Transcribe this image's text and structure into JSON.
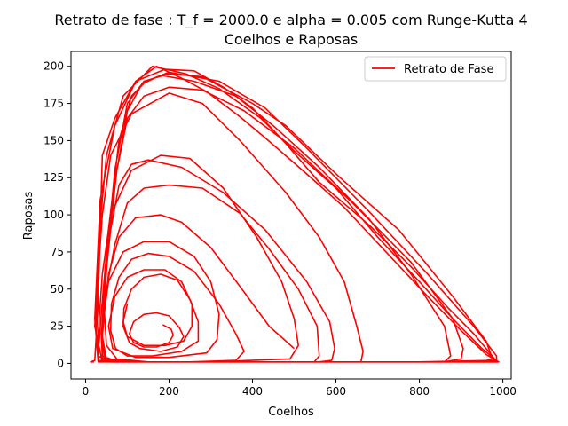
{
  "chart_data": {
    "type": "line",
    "title": "Retrato de fase : T_f = 2000.0 e alpha = 0.005 com Runge-Kutta 4",
    "subtitle": "Coelhos e Raposas",
    "xlabel": "Coelhos",
    "ylabel": "Raposas",
    "xlim": [
      -35,
      1020
    ],
    "ylim": [
      -10.5,
      210
    ],
    "xticks": [
      0,
      200,
      400,
      600,
      800,
      1000
    ],
    "xtick_labels": [
      "0",
      "200",
      "400",
      "600",
      "800",
      "1000"
    ],
    "yticks": [
      0,
      25,
      50,
      75,
      100,
      125,
      150,
      175,
      200
    ],
    "ytick_labels": [
      "0",
      "25",
      "50",
      "75",
      "100",
      "125",
      "150",
      "175",
      "200"
    ],
    "grid": false,
    "legend": {
      "position": "top-right",
      "entries": [
        "Retrato de Fase"
      ]
    },
    "colors": {
      "series": "#ff0000",
      "axes": "#000000"
    },
    "series": [
      {
        "name": "Retrato de Fase",
        "loops": [
          [
            [
              500,
              10
            ],
            [
              440,
              25
            ],
            [
              380,
              48
            ],
            [
              300,
              78
            ],
            [
              230,
              95
            ],
            [
              180,
              100
            ],
            [
              120,
              98
            ],
            [
              80,
              85
            ],
            [
              55,
              60
            ],
            [
              45,
              35
            ],
            [
              50,
              12
            ],
            [
              75,
              3
            ],
            [
              150,
              1
            ],
            [
              250,
              1
            ],
            [
              350,
              1
            ],
            [
              450,
              1
            ],
            [
              560,
              1
            ],
            [
              590,
              2
            ],
            [
              597,
              10
            ],
            [
              585,
              28
            ],
            [
              530,
              55
            ],
            [
              430,
              90
            ],
            [
              330,
              115
            ],
            [
              230,
              132
            ],
            [
              150,
              137
            ],
            [
              110,
              134
            ],
            [
              80,
              120
            ],
            [
              60,
              90
            ],
            [
              45,
              50
            ],
            [
              40,
              15
            ],
            [
              48,
              3
            ],
            [
              100,
              1
            ],
            [
              300,
              1
            ],
            [
              600,
              1
            ],
            [
              860,
              1
            ],
            [
              900,
              3
            ],
            [
              905,
              10
            ],
            [
              880,
              30
            ],
            [
              780,
              68
            ],
            [
              640,
              108
            ],
            [
              500,
              145
            ],
            [
              380,
              170
            ],
            [
              280,
              184
            ],
            [
              200,
              186
            ],
            [
              140,
              180
            ],
            [
              100,
              165
            ],
            [
              75,
              130
            ],
            [
              50,
              70
            ],
            [
              40,
              20
            ],
            [
              45,
              3
            ],
            [
              80,
              1
            ],
            [
              300,
              1
            ],
            [
              700,
              1
            ],
            [
              950,
              1
            ],
            [
              975,
              3
            ],
            [
              960,
              15
            ],
            [
              880,
              45
            ],
            [
              750,
              90
            ],
            [
              610,
              125
            ],
            [
              480,
              160
            ],
            [
              400,
              175
            ],
            [
              280,
              193
            ],
            [
              200,
              195
            ],
            [
              140,
              190
            ],
            [
              100,
              175
            ],
            [
              70,
              130
            ],
            [
              50,
              70
            ],
            [
              38,
              20
            ],
            [
              40,
              3
            ],
            [
              90,
              1
            ],
            [
              400,
              1
            ],
            [
              800,
              1
            ],
            [
              985,
              1
            ],
            [
              985,
              5
            ],
            [
              930,
              25
            ],
            [
              820,
              60
            ],
            [
              680,
              102
            ],
            [
              530,
              145
            ],
            [
              430,
              172
            ],
            [
              320,
              190
            ],
            [
              200,
              196
            ],
            [
              145,
              190
            ],
            [
              110,
              180
            ],
            [
              80,
              150
            ],
            [
              55,
              90
            ],
            [
              38,
              35
            ],
            [
              30,
              5
            ],
            [
              60,
              1
            ],
            [
              300,
              1
            ],
            [
              600,
              1
            ],
            [
              860,
              1
            ],
            [
              875,
              5
            ],
            [
              860,
              25
            ],
            [
              780,
              60
            ],
            [
              680,
              97
            ],
            [
              560,
              132
            ],
            [
              450,
              160
            ],
            [
              360,
              180
            ],
            [
              260,
              190
            ],
            [
              180,
              194
            ],
            [
              135,
              188
            ],
            [
              100,
              170
            ],
            [
              75,
              130
            ],
            [
              55,
              80
            ],
            [
              40,
              25
            ],
            [
              40,
              5
            ],
            [
              80,
              1
            ],
            [
              200,
              1
            ],
            [
              400,
              1
            ],
            [
              548,
              1
            ],
            [
              560,
              5
            ],
            [
              555,
              25
            ],
            [
              510,
              50
            ],
            [
              440,
              77
            ],
            [
              370,
              101
            ],
            [
              280,
              118
            ],
            [
              200,
              120
            ],
            [
              140,
              118
            ],
            [
              100,
              108
            ],
            [
              70,
              80
            ],
            [
              50,
              50
            ],
            [
              40,
              18
            ],
            [
              50,
              3
            ],
            [
              100,
              1
            ],
            [
              250,
              1
            ],
            [
              360,
              2
            ],
            [
              380,
              8
            ],
            [
              360,
              20
            ],
            [
              320,
              40
            ],
            [
              260,
              62
            ],
            [
              200,
              72
            ],
            [
              150,
              74
            ],
            [
              110,
              70
            ],
            [
              80,
              58
            ],
            [
              62,
              40
            ],
            [
              60,
              22
            ],
            [
              72,
              10
            ],
            [
              100,
              5
            ],
            [
              160,
              5
            ],
            [
              230,
              8
            ],
            [
              270,
              15
            ],
            [
              270,
              28
            ],
            [
              250,
              43
            ],
            [
              220,
              56
            ],
            [
              180,
              60
            ],
            [
              140,
              58
            ],
            [
              110,
              50
            ],
            [
              92,
              37
            ],
            [
              90,
              25
            ],
            [
              105,
              14
            ],
            [
              130,
              10
            ],
            [
              180,
              8
            ],
            [
              220,
              11
            ],
            [
              235,
              18
            ],
            [
              225,
              24
            ],
            [
              200,
              32
            ],
            [
              170,
              34
            ],
            [
              140,
              33
            ],
            [
              115,
              28
            ],
            [
              105,
              20
            ],
            [
              115,
              14
            ],
            [
              140,
              11
            ],
            [
              170,
              11
            ],
            [
              200,
              14
            ],
            [
              210,
              19
            ],
            [
              205,
              23
            ],
            [
              185,
              26
            ]
          ],
          [
            [
              20,
              1
            ],
            [
              12,
              1
            ],
            [
              22,
              2
            ],
            [
              30,
              40
            ],
            [
              40,
              140
            ],
            [
              70,
              165
            ],
            [
              120,
              190
            ],
            [
              190,
              198
            ],
            [
              260,
              197
            ],
            [
              330,
              186
            ],
            [
              400,
              172
            ],
            [
              480,
              148
            ],
            [
              560,
              122
            ],
            [
              680,
              93
            ],
            [
              780,
              65
            ],
            [
              870,
              37
            ],
            [
              930,
              20
            ],
            [
              975,
              5
            ],
            [
              985,
              1
            ],
            [
              700,
              1
            ],
            [
              350,
              1
            ],
            [
              120,
              1
            ],
            [
              30,
              1
            ],
            [
              25,
              20
            ],
            [
              30,
              80
            ],
            [
              50,
              140
            ],
            [
              90,
              180
            ],
            [
              160,
              200
            ],
            [
              240,
              195
            ],
            [
              320,
              185
            ],
            [
              420,
              165
            ],
            [
              500,
              143
            ],
            [
              600,
              118
            ],
            [
              700,
              85
            ],
            [
              800,
              55
            ],
            [
              880,
              30
            ],
            [
              950,
              10
            ],
            [
              985,
              2
            ],
            [
              800,
              1
            ],
            [
              500,
              1
            ],
            [
              200,
              1
            ],
            [
              30,
              1
            ],
            [
              22,
              30
            ],
            [
              35,
              110
            ],
            [
              70,
              160
            ],
            [
              120,
              190
            ],
            [
              170,
              200
            ],
            [
              230,
              192
            ],
            [
              290,
              183
            ],
            [
              370,
              166
            ],
            [
              430,
              152
            ],
            [
              520,
              130
            ],
            [
              620,
              105
            ],
            [
              720,
              75
            ],
            [
              820,
              45
            ],
            [
              900,
              22
            ],
            [
              960,
              6
            ],
            [
              990,
              1
            ],
            [
              600,
              1
            ],
            [
              250,
              1
            ],
            [
              40,
              1
            ],
            [
              22,
              25
            ],
            [
              30,
              60
            ],
            [
              40,
              100
            ],
            [
              60,
              140
            ],
            [
              110,
              168
            ],
            [
              200,
              182
            ],
            [
              280,
              175
            ],
            [
              370,
              150
            ],
            [
              480,
              115
            ],
            [
              560,
              85
            ],
            [
              620,
              55
            ],
            [
              650,
              25
            ],
            [
              665,
              8
            ],
            [
              660,
              1
            ],
            [
              400,
              1
            ],
            [
              150,
              1
            ],
            [
              30,
              2
            ],
            [
              30,
              20
            ],
            [
              40,
              60
            ],
            [
              60,
              100
            ],
            [
              110,
              130
            ],
            [
              180,
              140
            ],
            [
              250,
              138
            ],
            [
              330,
              118
            ],
            [
              410,
              85
            ],
            [
              470,
              55
            ],
            [
              500,
              30
            ],
            [
              510,
              12
            ],
            [
              490,
              3
            ],
            [
              300,
              1
            ],
            [
              130,
              1
            ],
            [
              40,
              3
            ],
            [
              40,
              25
            ],
            [
              55,
              55
            ],
            [
              90,
              75
            ],
            [
              140,
              82
            ],
            [
              200,
              82
            ],
            [
              260,
              72
            ],
            [
              300,
              55
            ],
            [
              320,
              33
            ],
            [
              315,
              16
            ],
            [
              290,
              7
            ],
            [
              200,
              4
            ],
            [
              120,
              4
            ],
            [
              65,
              10
            ],
            [
              55,
              25
            ],
            [
              70,
              45
            ],
            [
              100,
              58
            ],
            [
              140,
              63
            ],
            [
              190,
              63
            ],
            [
              230,
              55
            ],
            [
              255,
              40
            ],
            [
              255,
              25
            ],
            [
              235,
              15
            ],
            [
              190,
              12
            ],
            [
              140,
              12
            ],
            [
              100,
              18
            ],
            [
              90,
              28
            ],
            [
              100,
              40
            ]
          ]
        ]
      }
    ]
  }
}
